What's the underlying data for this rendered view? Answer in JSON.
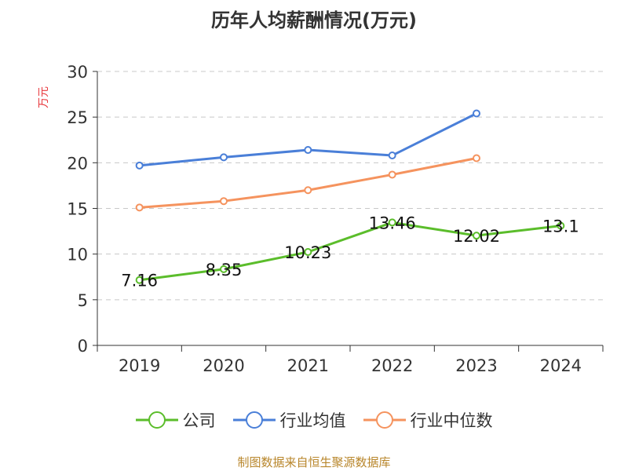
{
  "chart_data": {
    "type": "line",
    "title": "历年人均薪酬情况(万元)",
    "ylabel": "万元",
    "xlabel": "",
    "categories": [
      "2019",
      "2020",
      "2021",
      "2022",
      "2023",
      "2024"
    ],
    "ylim": [
      0,
      30
    ],
    "yticks": [
      0,
      5,
      10,
      15,
      20,
      25,
      30
    ],
    "grid": true,
    "legend_position": "bottom",
    "series": [
      {
        "name": "公司",
        "color": "#5bbd2b",
        "values": [
          7.16,
          8.35,
          10.23,
          13.46,
          12.02,
          13.1
        ],
        "labels": [
          "7.16",
          "8.35",
          "10.23",
          "13.46",
          "12.02",
          "13.1"
        ]
      },
      {
        "name": "行业均值",
        "color": "#4a7fd8",
        "values": [
          19.7,
          20.6,
          21.4,
          20.8,
          25.4,
          null
        ],
        "labels": null
      },
      {
        "name": "行业中位数",
        "color": "#f5935e",
        "values": [
          15.1,
          15.8,
          17.0,
          18.7,
          20.5,
          null
        ],
        "labels": null
      }
    ]
  },
  "source": "制图数据来自恒生聚源数据库"
}
